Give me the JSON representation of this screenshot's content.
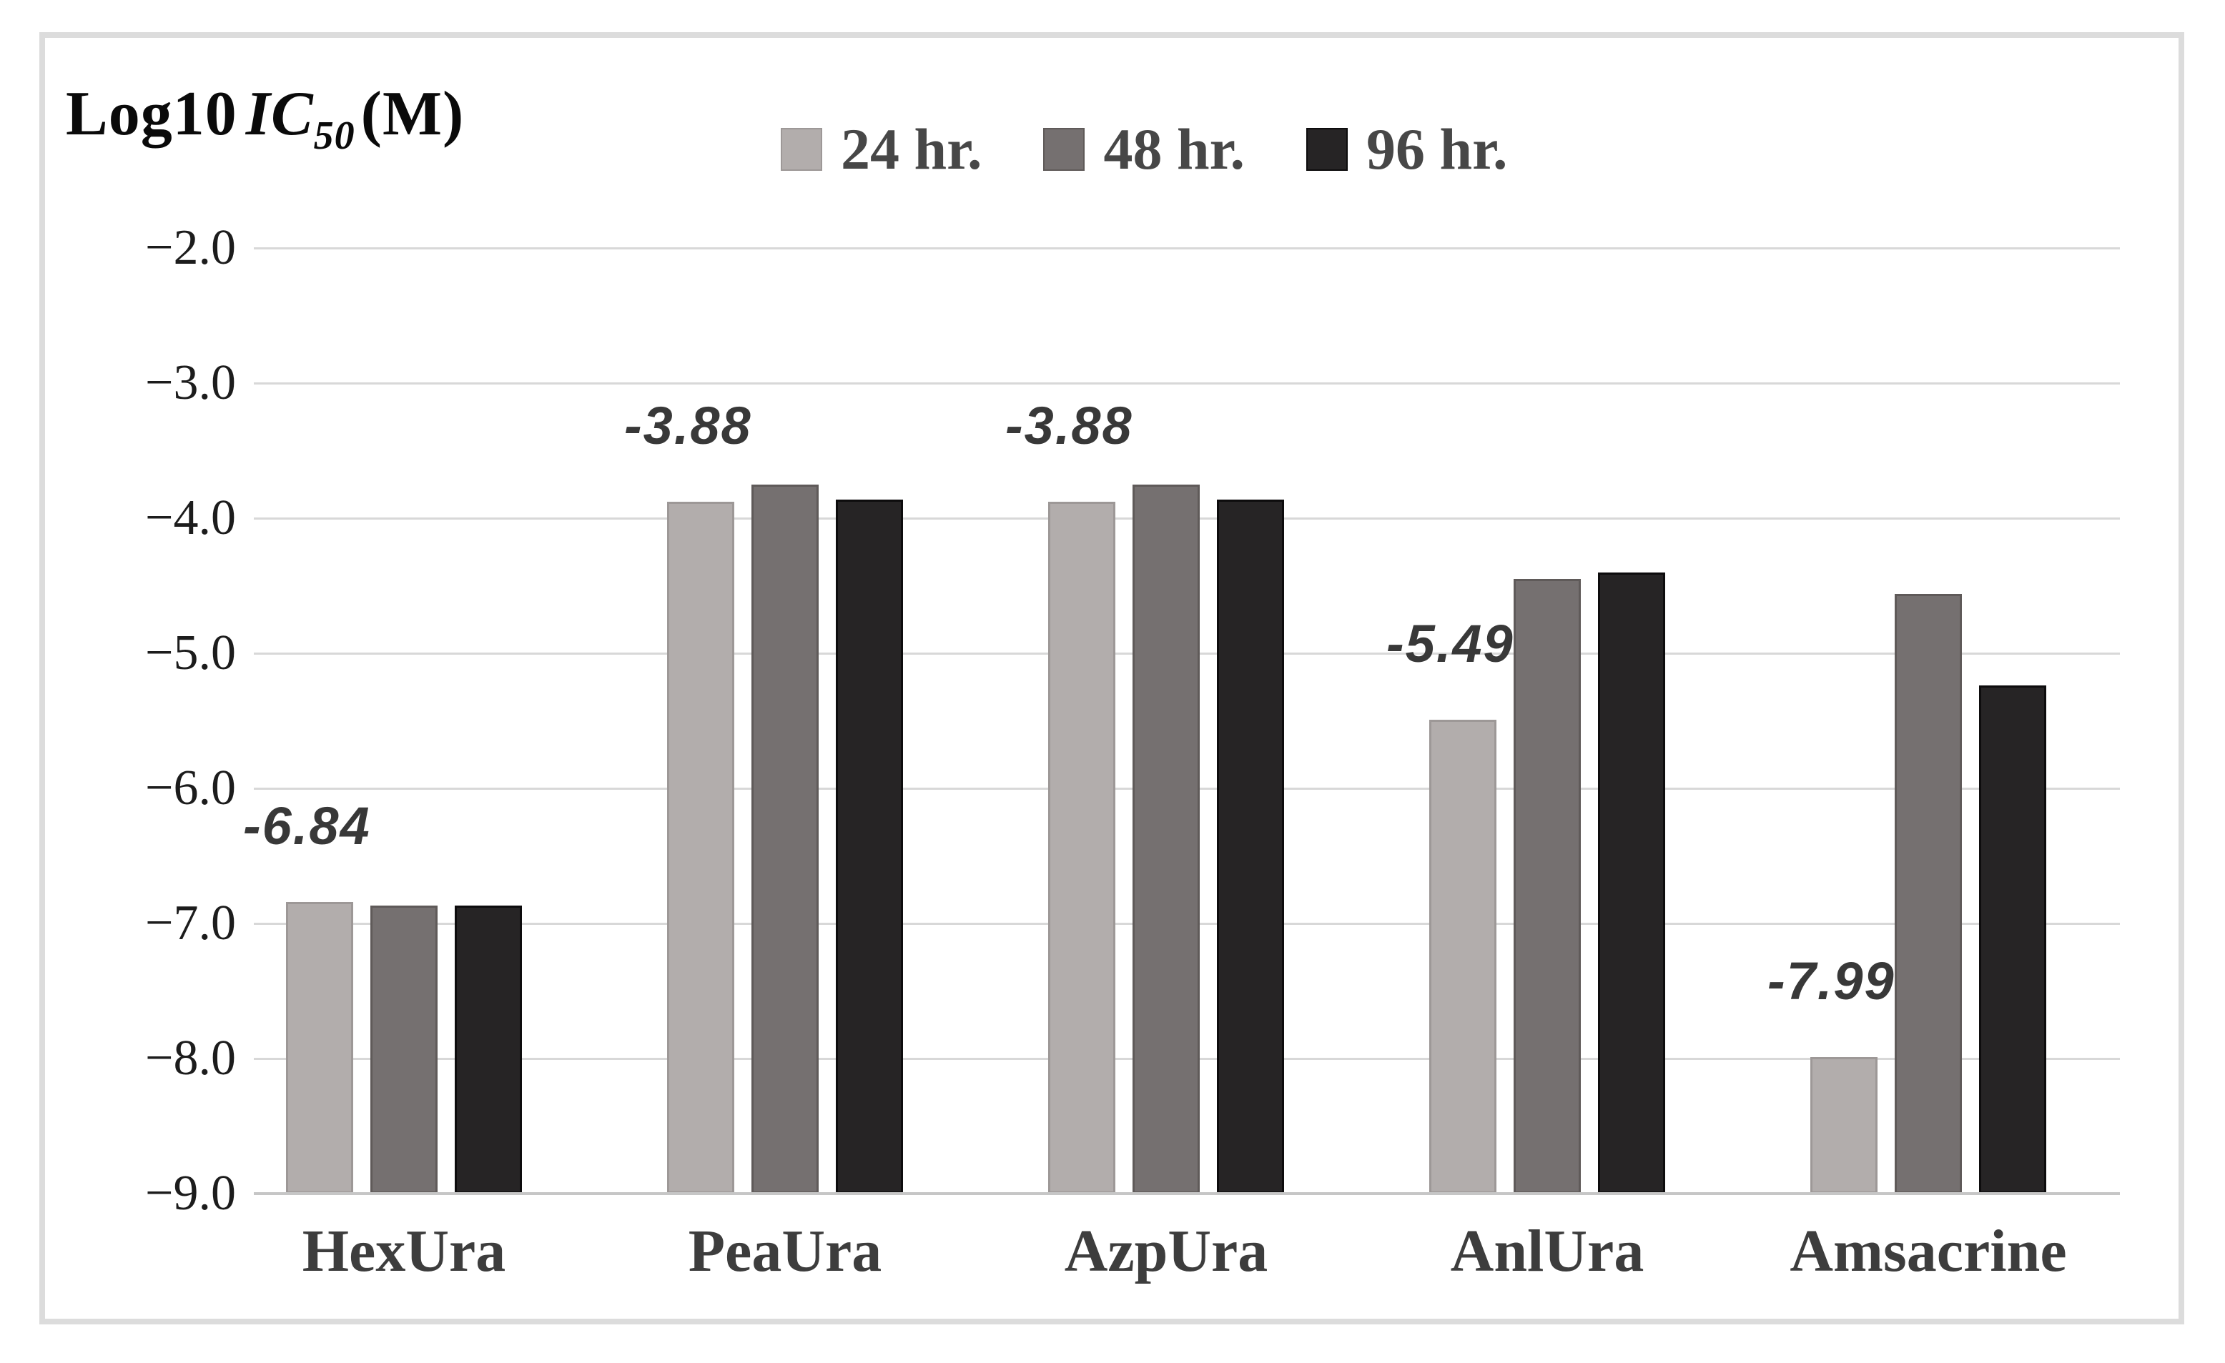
{
  "title": {
    "log10": "Log10",
    "ic": "IC",
    "sub": "50",
    "unit": "(M)"
  },
  "chart_data": {
    "type": "bar",
    "title": "Log10 IC50 (M)",
    "categories": [
      "HexUra",
      "PeaUra",
      "AzpUra",
      "AnlUra",
      "Amsacrine"
    ],
    "series": [
      {
        "name": "24 hr.",
        "color": "#b2adac",
        "border": "#9d9897",
        "values": [
          -6.84,
          -3.88,
          -3.88,
          -5.49,
          -7.99
        ]
      },
      {
        "name": "48 hr.",
        "color": "#757070",
        "border": "#5f5a59",
        "values": [
          -6.87,
          -3.75,
          -3.75,
          -4.45,
          -4.56
        ]
      },
      {
        "name": "96 hr.",
        "color": "#262425",
        "border": "#0d0c0d",
        "values": [
          -6.87,
          -3.86,
          -3.86,
          -4.4,
          -5.24
        ]
      }
    ],
    "annotations": [
      {
        "category": "HexUra",
        "series": "24 hr.",
        "text": "-6.84"
      },
      {
        "category": "PeaUra",
        "series": "24 hr.",
        "text": "-3.88"
      },
      {
        "category": "AzpUra",
        "series": "24 hr.",
        "text": "-3.88"
      },
      {
        "category": "AnlUra",
        "series": "24 hr.",
        "text": "-5.49"
      },
      {
        "category": "Amsacrine",
        "series": "24 hr.",
        "text": "-7.99"
      }
    ],
    "yticks": [
      "−2.0",
      "−3.0",
      "−4.0",
      "−5.0",
      "−6.0",
      "−7.0",
      "−8.0",
      "−9.0"
    ],
    "ytick_values": [
      -2,
      -3,
      -4,
      -5,
      -6,
      -7,
      -8,
      -9
    ],
    "ylim": [
      -9,
      -2
    ],
    "grid": true,
    "legend_position": "top",
    "gridline_color": "#d8d8d8",
    "axis_line_color": "#c6c6c6"
  }
}
